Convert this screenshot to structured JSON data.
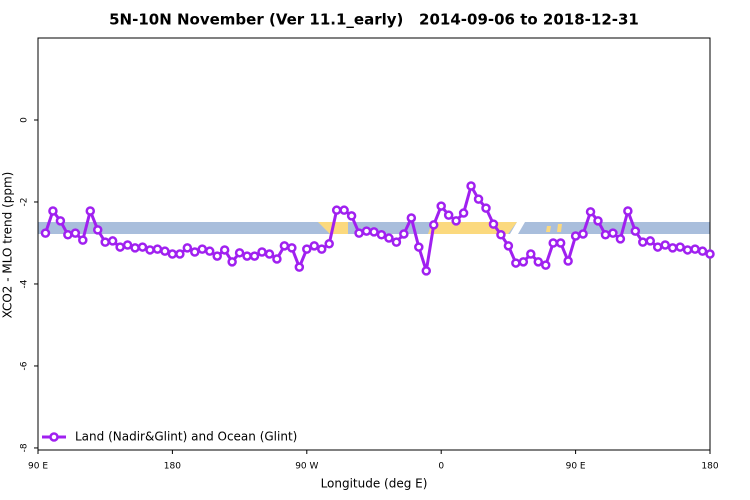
{
  "chart_data": {
    "type": "line",
    "title": "5N-10N November (Ver 11.1_early)   2014-09-06 to 2018-12-31",
    "x_label": "Longitude (deg E)",
    "y_label": "XCO2 - MLO trend (ppm)",
    "x": [
      95,
      100,
      105,
      110,
      115,
      120,
      125,
      130,
      135,
      140,
      145,
      150,
      155,
      160,
      165,
      170,
      175,
      180,
      185,
      190,
      195,
      200,
      205,
      210,
      215,
      220,
      225,
      230,
      235,
      240,
      245,
      250,
      255,
      260,
      265,
      270,
      275,
      280,
      285,
      290,
      295,
      300,
      305,
      310,
      315,
      320,
      325,
      330,
      335,
      340,
      345,
      350,
      355,
      360,
      365,
      370,
      375,
      380,
      385,
      390,
      395,
      400,
      405,
      410,
      415,
      420,
      425,
      430,
      435,
      440,
      445,
      450,
      455,
      460,
      465,
      470,
      475,
      480,
      485,
      490,
      495,
      500,
      505,
      510,
      515,
      520,
      525,
      530,
      535,
      540
    ],
    "series": [
      {
        "name": "Land (Nadir&Glint) and Ocean (Glint)",
        "color": "#a020f0",
        "values": [
          -2.76,
          -2.22,
          -2.46,
          -2.8,
          -2.76,
          -2.93,
          -2.22,
          -2.68,
          -2.98,
          -2.95,
          -3.1,
          -3.05,
          -3.12,
          -3.1,
          -3.17,
          -3.15,
          -3.2,
          -3.27,
          -3.27,
          -3.12,
          -3.22,
          -3.15,
          -3.2,
          -3.32,
          -3.17,
          -3.46,
          -3.24,
          -3.32,
          -3.32,
          -3.22,
          -3.27,
          -3.39,
          -3.07,
          -3.12,
          -3.59,
          -3.15,
          -3.07,
          -3.15,
          -3.02,
          -2.2,
          -2.2,
          -2.34,
          -2.76,
          -2.71,
          -2.73,
          -2.8,
          -2.88,
          -2.98,
          -2.78,
          -2.39,
          -3.1,
          -3.68,
          -2.56,
          -2.1,
          -2.32,
          -2.46,
          -2.27,
          -1.61,
          -1.93,
          -2.15,
          -2.54,
          -2.8,
          -3.07,
          -3.49,
          -3.46,
          -3.27,
          -3.46,
          -3.54,
          -3.0,
          -3.0,
          -3.44,
          -2.83,
          -2.78,
          -2.24,
          -2.46,
          -2.8,
          -2.76,
          -2.9,
          -2.22,
          -2.71,
          -2.98,
          -2.95,
          -3.1,
          -3.05,
          -3.12,
          -3.1,
          -3.17,
          -3.15,
          -3.2,
          -3.27
        ]
      }
    ],
    "xlim": [
      90,
      540
    ],
    "ylim": [
      -8.05,
      2.0
    ],
    "xticks": [
      {
        "value": 90,
        "label": "90 E"
      },
      180,
      {
        "value": 270,
        "label": "90 W"
      },
      {
        "value": 360,
        "label": "0"
      },
      {
        "value": 450,
        "label": "90 E"
      },
      {
        "value": 540,
        "label": "180"
      }
    ],
    "yticks": [
      0,
      -2,
      -4,
      -6,
      -8
    ],
    "legend": "lower left"
  }
}
